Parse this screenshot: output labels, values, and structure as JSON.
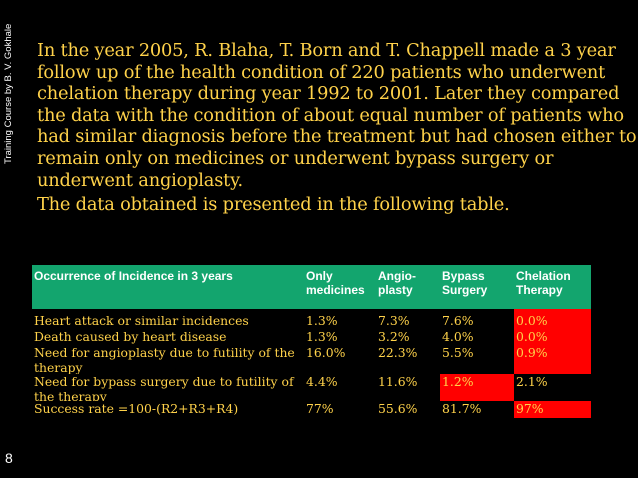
{
  "side_credit": "Training Course by B. V. Gokhale",
  "page_number": "8",
  "paragraphs": [
    "In the year 2005, R. Blaha, T. Born and T. Chappell made a 3 year follow up of the health condition of 220 patients who underwent chelation therapy during  year 1992 to 2001. Later they compared the data with the condition of about equal number of patients who had similar diagnosis before the treatment but had chosen either to remain only on medicines or underwent bypass surgery or underwent angioplasty.",
    "The data obtained is presented in the following table."
  ],
  "table": {
    "headers": [
      "Occurrence of Incidence in 3 years",
      "Only medicines",
      "Angio-plasty",
      "Bypass Surgery",
      "Chelation Therapy"
    ],
    "rows": [
      [
        "Heart attack or similar incidences",
        "1.3%",
        "7.3%",
        "7.6%",
        "0.0%"
      ],
      [
        "Death caused by heart disease",
        "1.3%",
        "3.2%",
        "4.0%",
        "0.0%"
      ],
      [
        "Need for angioplasty due to futility of the therapy",
        "16.0%",
        "22.3%",
        "5.5%",
        "0.9%"
      ],
      [
        "Need for bypass surgery due to futility of the therapy",
        "4.4%",
        "11.6%",
        "1.2%",
        "2.1%"
      ],
      [
        "Success rate =100-(R2+R3+R4)",
        "77%",
        "55.6%",
        "81.7%",
        "97%"
      ]
    ],
    "colors": {
      "header_bg": "#13a56e",
      "highlight": "#ff0000",
      "text": "#ffd24a"
    }
  }
}
